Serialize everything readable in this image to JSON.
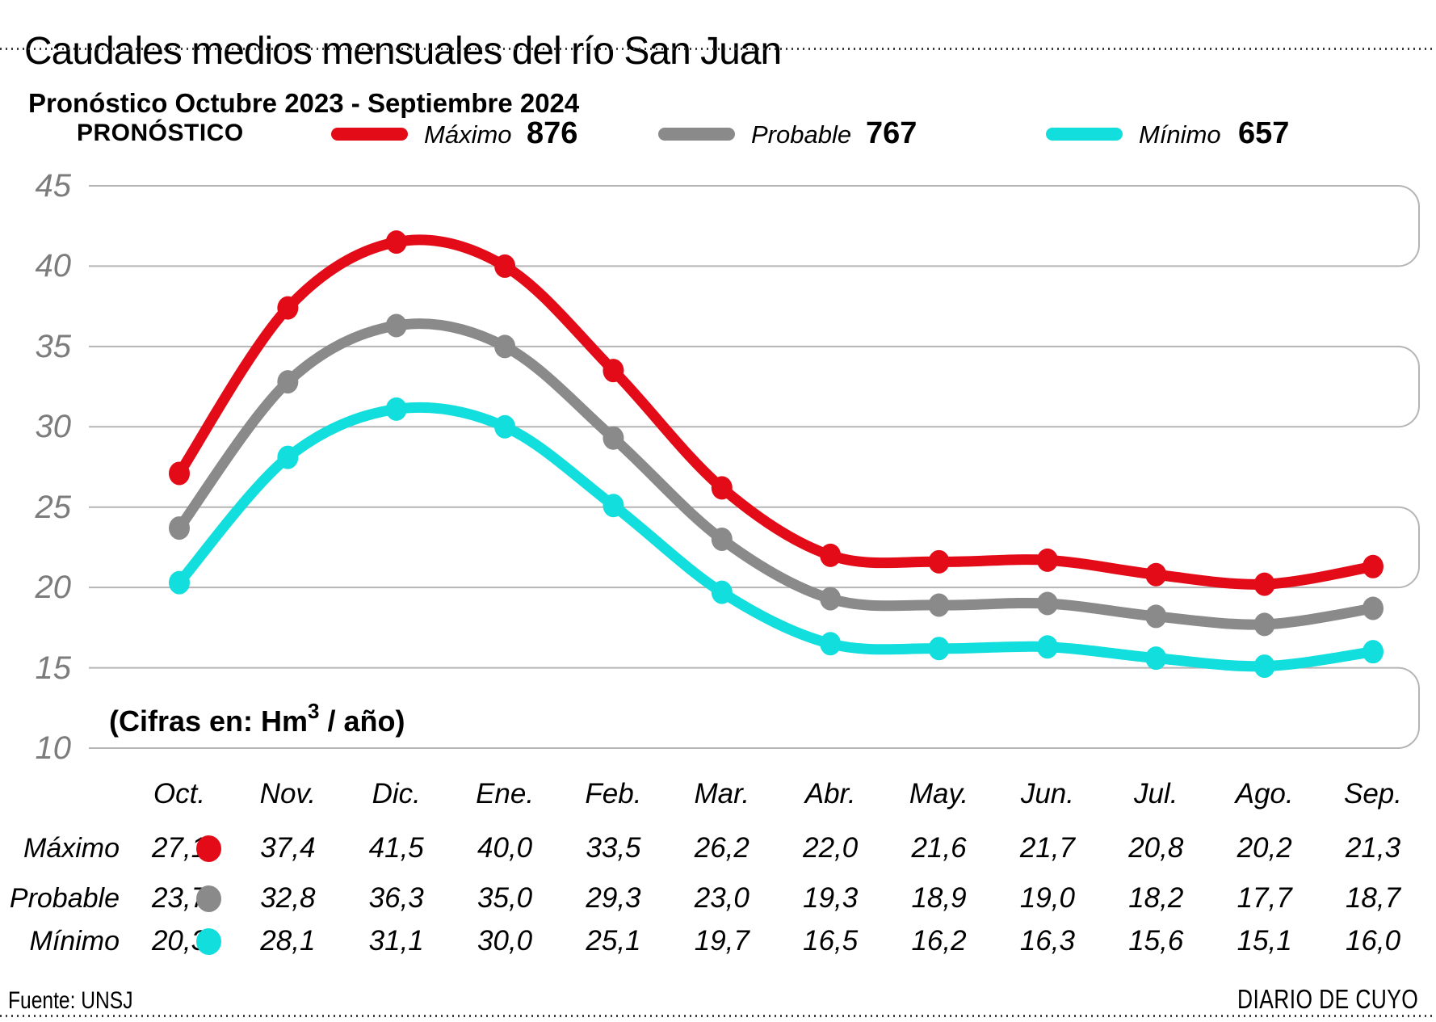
{
  "title": "Caudales medios mensuales del río San Juan",
  "subtitle": "Pronóstico Octubre 2023 - Septiembre 2024",
  "legend": {
    "heading": "PRONÓSTICO",
    "items": [
      {
        "name": "Máximo",
        "annual_total": "876",
        "color": "#e30b17"
      },
      {
        "name": "Probable",
        "annual_total": "767",
        "color": "#8a8a8a"
      },
      {
        "name": "Mínimo",
        "annual_total": "657",
        "color": "#12dedd"
      }
    ]
  },
  "units_note": {
    "prefix": "(Cifras en: Hm",
    "sup": "3",
    "suffix": " / año)"
  },
  "footer": {
    "source": "Fuente: UNSJ",
    "credit": "DIARIO DE CUYO"
  },
  "chart_data": {
    "type": "line",
    "title": "Caudales medios mensuales del río San Juan",
    "subtitle": "Pronóstico Octubre 2023 - Septiembre 2024",
    "units": "Hm3 / año",
    "categories": [
      "Oct.",
      "Nov.",
      "Dic.",
      "Ene.",
      "Feb.",
      "Mar.",
      "Abr.",
      "May.",
      "Jun.",
      "Jul.",
      "Ago.",
      "Sep."
    ],
    "series": [
      {
        "name": "Máximo",
        "annual_total": 876,
        "color": "#e30b17",
        "values": [
          27.1,
          37.4,
          41.5,
          40.0,
          33.5,
          26.2,
          22.0,
          21.6,
          21.7,
          20.8,
          20.2,
          21.3
        ]
      },
      {
        "name": "Probable",
        "annual_total": 767,
        "color": "#8a8a8a",
        "values": [
          23.7,
          32.8,
          36.3,
          35.0,
          29.3,
          23.0,
          19.3,
          18.9,
          19.0,
          18.2,
          17.7,
          18.7
        ]
      },
      {
        "name": "Mínimo",
        "annual_total": 657,
        "color": "#12dedd",
        "values": [
          20.3,
          28.1,
          31.1,
          30.0,
          25.1,
          19.7,
          16.5,
          16.2,
          16.3,
          15.6,
          15.1,
          16.0
        ]
      }
    ],
    "ylim": [
      10,
      45
    ],
    "yticks": [
      45,
      40,
      35,
      30,
      25,
      20,
      15,
      10
    ],
    "grid": "horizontal gridlines drawn as stacked rounded-right rectangles, light gray",
    "grid_color": "#b5b5b5",
    "legend_position": "top",
    "decimal_separator": ","
  }
}
